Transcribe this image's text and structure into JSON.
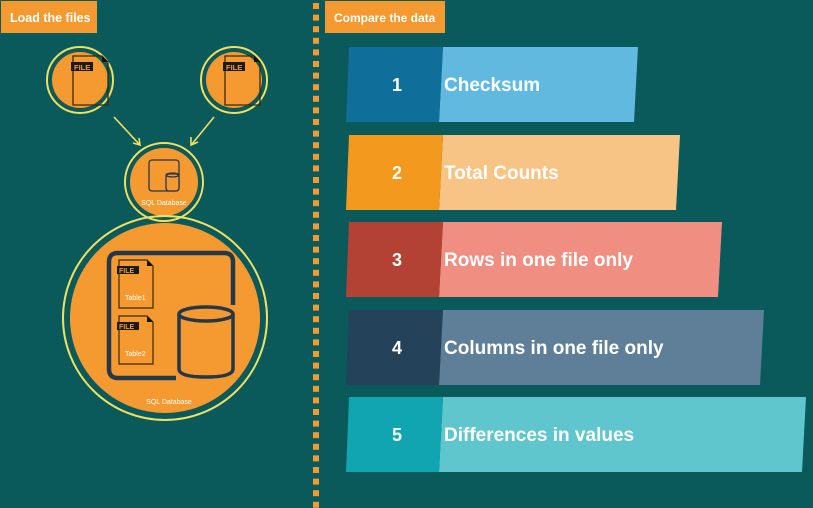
{
  "left_panel": {
    "title": "Load the files",
    "file_label": "FILE",
    "db_small_label": "SQL Database",
    "db_large": {
      "label": "SQL Database",
      "tables": [
        "Table1",
        "Table2"
      ]
    }
  },
  "right_panel": {
    "title": "Compare the data",
    "steps": [
      {
        "number": "1",
        "label": "Checksum",
        "dark": "#0f6f9a",
        "light": "#62b9e0"
      },
      {
        "number": "2",
        "label": "Total Counts",
        "dark": "#f39a1e",
        "light": "#f8c485"
      },
      {
        "number": "3",
        "label": "Rows in one file only",
        "dark": "#b34134",
        "light": "#f08e82"
      },
      {
        "number": "4",
        "label": "Columns in one file only",
        "dark": "#24435a",
        "light": "#5e7f97"
      },
      {
        "number": "5",
        "label": "Differences in values",
        "dark": "#10a5b0",
        "light": "#5ec6cc"
      }
    ]
  },
  "colors": {
    "background": "#0a595b",
    "accent": "#f59a30",
    "ring": "#f0e060",
    "icon_stroke": "#25384a"
  }
}
